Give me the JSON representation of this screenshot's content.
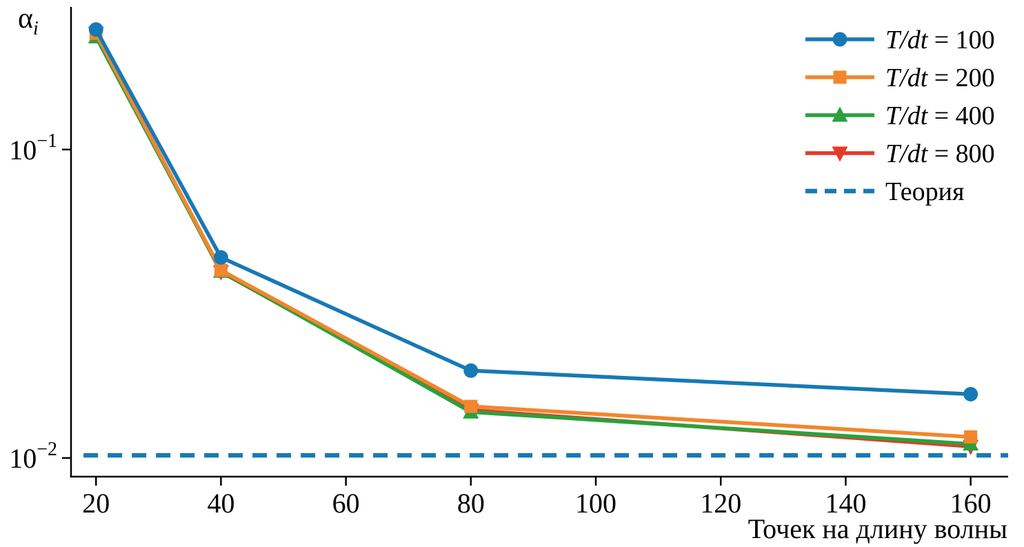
{
  "chart_data": {
    "type": "line",
    "title": "",
    "xlabel": "Точек на длину волны",
    "ylabel_base": "α",
    "ylabel_sub": "i",
    "y_scale": "log",
    "grid": false,
    "legend_position": "top-right",
    "x": [
      20,
      40,
      80,
      160
    ],
    "xlim": [
      16,
      166
    ],
    "ylim_log": [
      0.0087,
      0.29
    ],
    "x_ticks": [
      20,
      40,
      60,
      80,
      100,
      120,
      140,
      160
    ],
    "y_ticks": [
      {
        "value": 0.1,
        "base": "10",
        "exp": "−1"
      },
      {
        "value": 0.01,
        "base": "10",
        "exp": "−2"
      }
    ],
    "series": [
      {
        "name_math": "T/dt",
        "name_rest": " = 100",
        "marker": "circle",
        "color": "#1779b5",
        "values": [
          0.245,
          0.0447,
          0.0192,
          0.0161
        ]
      },
      {
        "name_math": "T/dt",
        "name_rest": " = 200",
        "marker": "square",
        "color": "#f2862d",
        "values": [
          0.238,
          0.0406,
          0.0147,
          0.0117
        ]
      },
      {
        "name_math": "T/dt",
        "name_rest": " = 400",
        "marker": "triangle-up",
        "color": "#2aa13c",
        "values": [
          0.232,
          0.0403,
          0.0141,
          0.0111
        ]
      },
      {
        "name_math": "T/dt",
        "name_rest": " = 800",
        "marker": "triangle-down",
        "color": "#e43a28",
        "values": [
          0.238,
          0.0401,
          0.0143,
          0.0109
        ]
      }
    ],
    "theory": {
      "label": "Теория",
      "value": 0.0102,
      "color": "#1779b5",
      "style": "dashed",
      "x_span": [
        18,
        166
      ]
    }
  }
}
